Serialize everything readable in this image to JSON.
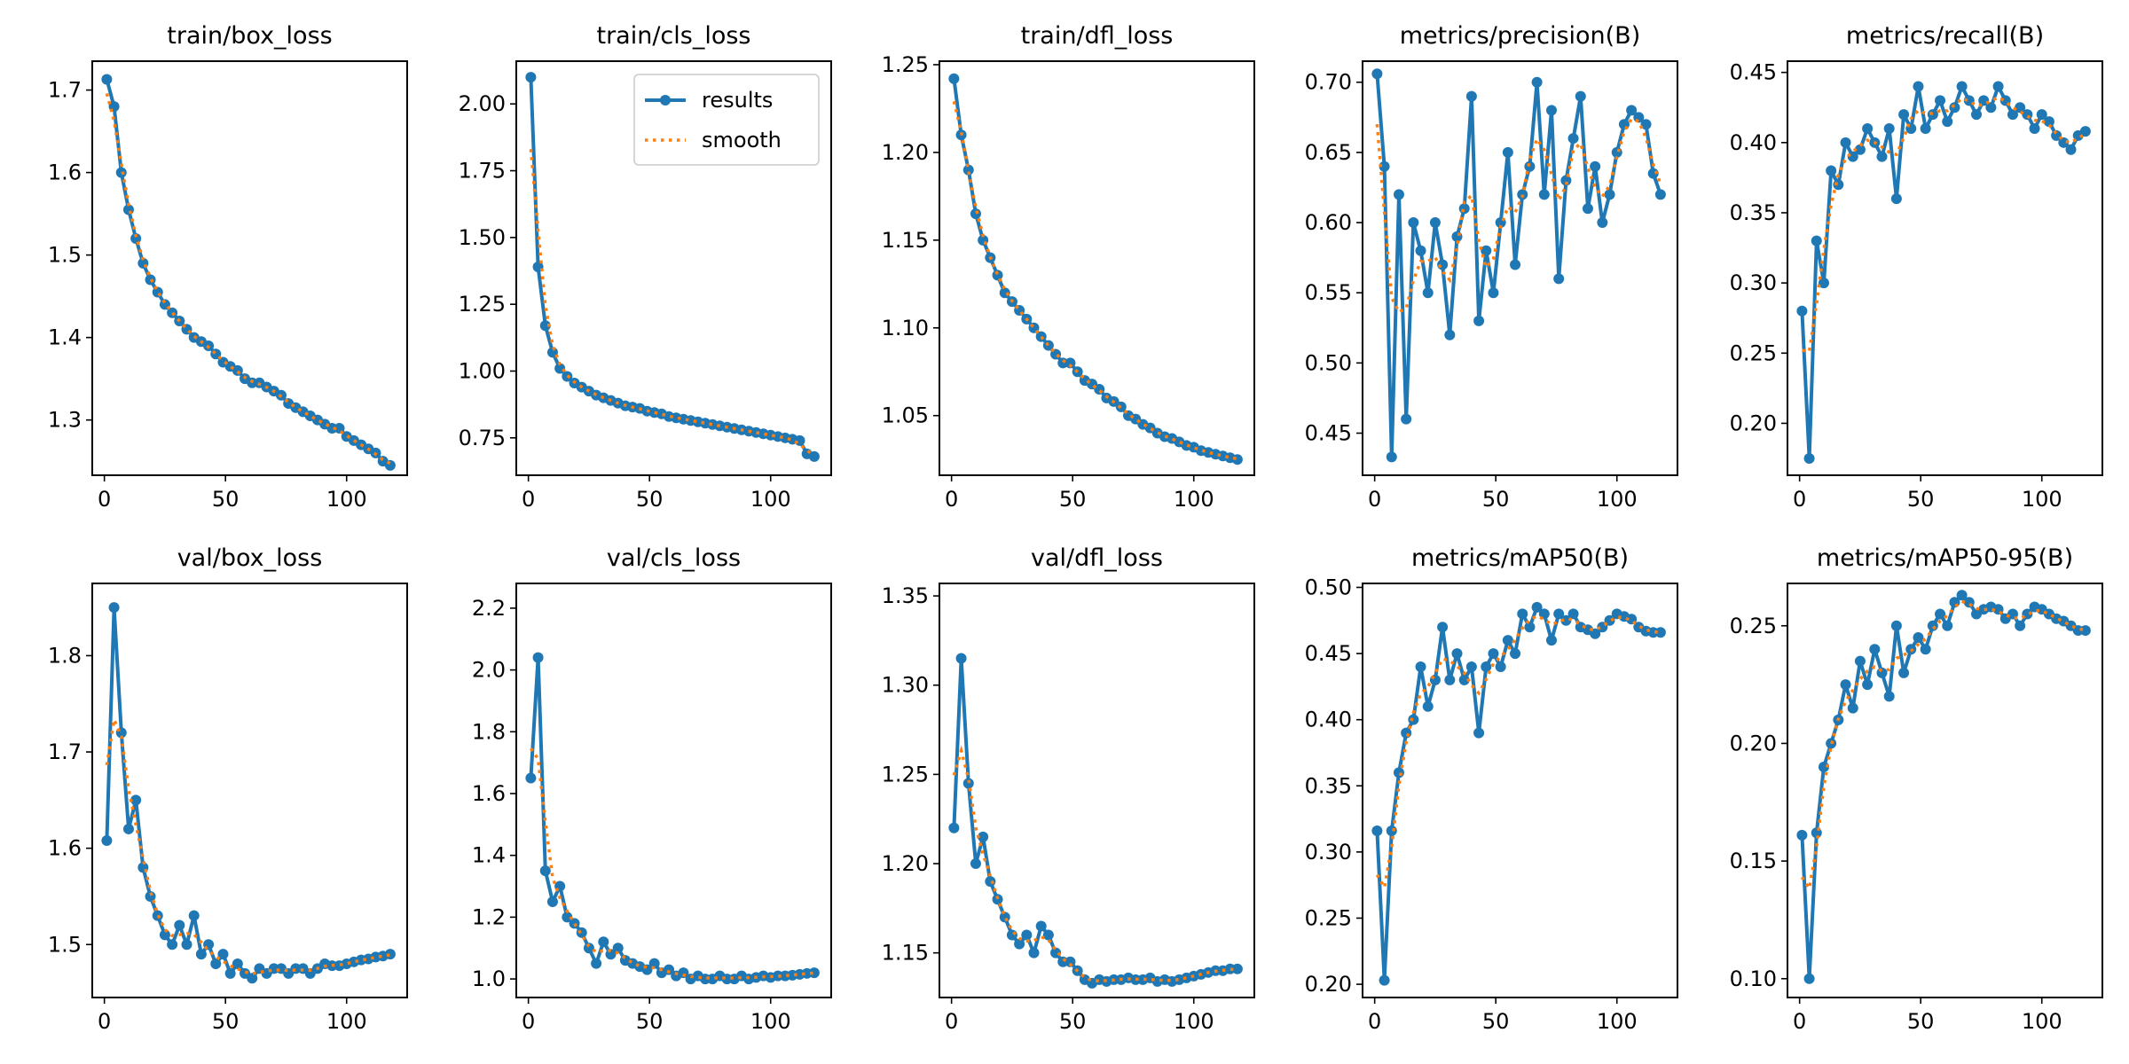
{
  "chart_data": [
    {
      "type": "line",
      "title": "train/box_loss",
      "x_start": 1,
      "x_step": 3,
      "xlim": [
        -5,
        125
      ],
      "xticks": [
        0,
        50,
        100
      ],
      "ylim": [
        1.233,
        1.735
      ],
      "yticks": [
        "1.3",
        "1.4",
        "1.5",
        "1.6",
        "1.7"
      ],
      "values": [
        1.713,
        1.68,
        1.6,
        1.555,
        1.52,
        1.49,
        1.47,
        1.455,
        1.44,
        1.43,
        1.42,
        1.41,
        1.4,
        1.395,
        1.39,
        1.38,
        1.37,
        1.365,
        1.36,
        1.35,
        1.345,
        1.345,
        1.34,
        1.335,
        1.33,
        1.32,
        1.315,
        1.31,
        1.305,
        1.3,
        1.295,
        1.29,
        1.29,
        1.28,
        1.275,
        1.27,
        1.265,
        1.26,
        1.25,
        1.245
      ]
    },
    {
      "type": "line",
      "title": "train/cls_loss",
      "x_start": 1,
      "x_step": 3,
      "xlim": [
        -5,
        125
      ],
      "xticks": [
        0,
        50,
        100
      ],
      "ylim": [
        0.61,
        2.16
      ],
      "yticks": [
        "0.75",
        "1.00",
        "1.25",
        "1.50",
        "1.75",
        "2.00"
      ],
      "values": [
        2.1,
        1.39,
        1.17,
        1.07,
        1.01,
        0.98,
        0.955,
        0.94,
        0.925,
        0.91,
        0.9,
        0.89,
        0.88,
        0.87,
        0.865,
        0.86,
        0.85,
        0.845,
        0.84,
        0.83,
        0.825,
        0.82,
        0.815,
        0.81,
        0.805,
        0.8,
        0.795,
        0.79,
        0.785,
        0.78,
        0.775,
        0.77,
        0.765,
        0.76,
        0.755,
        0.75,
        0.745,
        0.74,
        0.69,
        0.68
      ]
    },
    {
      "type": "line",
      "title": "train/dfl_loss",
      "x_start": 1,
      "x_step": 3,
      "xlim": [
        -5,
        125
      ],
      "xticks": [
        0,
        50,
        100
      ],
      "ylim": [
        1.016,
        1.252
      ],
      "yticks": [
        "1.05",
        "1.10",
        "1.15",
        "1.20",
        "1.25"
      ],
      "values": [
        1.242,
        1.21,
        1.19,
        1.165,
        1.15,
        1.14,
        1.13,
        1.12,
        1.115,
        1.11,
        1.105,
        1.1,
        1.095,
        1.09,
        1.085,
        1.08,
        1.08,
        1.075,
        1.07,
        1.068,
        1.065,
        1.06,
        1.058,
        1.055,
        1.05,
        1.048,
        1.045,
        1.043,
        1.04,
        1.038,
        1.037,
        1.035,
        1.033,
        1.032,
        1.03,
        1.029,
        1.028,
        1.027,
        1.026,
        1.025
      ]
    },
    {
      "type": "line",
      "title": "metrics/precision(B)",
      "x_start": 1,
      "x_step": 3,
      "xlim": [
        -5,
        125
      ],
      "xticks": [
        0,
        50,
        100
      ],
      "ylim": [
        0.42,
        0.715
      ],
      "yticks": [
        "0.45",
        "0.50",
        "0.55",
        "0.60",
        "0.65",
        "0.70"
      ],
      "values": [
        0.706,
        0.64,
        0.433,
        0.62,
        0.46,
        0.6,
        0.58,
        0.55,
        0.6,
        0.57,
        0.52,
        0.59,
        0.61,
        0.69,
        0.53,
        0.58,
        0.55,
        0.6,
        0.65,
        0.57,
        0.62,
        0.64,
        0.7,
        0.62,
        0.68,
        0.56,
        0.63,
        0.66,
        0.69,
        0.61,
        0.64,
        0.6,
        0.62,
        0.65,
        0.67,
        0.68,
        0.675,
        0.67,
        0.635,
        0.62
      ]
    },
    {
      "type": "line",
      "title": "metrics/recall(B)",
      "x_start": 1,
      "x_step": 3,
      "xlim": [
        -5,
        125
      ],
      "xticks": [
        0,
        50,
        100
      ],
      "ylim": [
        0.163,
        0.458
      ],
      "yticks": [
        "0.20",
        "0.25",
        "0.30",
        "0.35",
        "0.40",
        "0.45"
      ],
      "values": [
        0.28,
        0.175,
        0.33,
        0.3,
        0.38,
        0.37,
        0.4,
        0.39,
        0.395,
        0.41,
        0.4,
        0.39,
        0.41,
        0.36,
        0.42,
        0.41,
        0.44,
        0.41,
        0.42,
        0.43,
        0.415,
        0.425,
        0.44,
        0.43,
        0.42,
        0.43,
        0.425,
        0.44,
        0.43,
        0.42,
        0.425,
        0.42,
        0.41,
        0.42,
        0.415,
        0.405,
        0.4,
        0.395,
        0.405,
        0.408
      ]
    },
    {
      "type": "line",
      "title": "val/box_loss",
      "x_start": 1,
      "x_step": 3,
      "xlim": [
        -5,
        125
      ],
      "xticks": [
        0,
        50,
        100
      ],
      "ylim": [
        1.445,
        1.875
      ],
      "yticks": [
        "1.5",
        "1.6",
        "1.7",
        "1.8"
      ],
      "values": [
        1.608,
        1.85,
        1.72,
        1.62,
        1.65,
        1.58,
        1.55,
        1.53,
        1.51,
        1.5,
        1.52,
        1.5,
        1.53,
        1.49,
        1.5,
        1.48,
        1.49,
        1.47,
        1.48,
        1.47,
        1.465,
        1.475,
        1.47,
        1.475,
        1.475,
        1.47,
        1.475,
        1.475,
        1.47,
        1.475,
        1.48,
        1.478,
        1.478,
        1.48,
        1.482,
        1.484,
        1.485,
        1.487,
        1.488,
        1.49
      ]
    },
    {
      "type": "line",
      "title": "val/cls_loss",
      "x_start": 1,
      "x_step": 3,
      "xlim": [
        -5,
        125
      ],
      "xticks": [
        0,
        50,
        100
      ],
      "ylim": [
        0.94,
        2.28
      ],
      "yticks": [
        "1.0",
        "1.2",
        "1.4",
        "1.6",
        "1.8",
        "2.0",
        "2.2"
      ],
      "values": [
        1.65,
        2.04,
        1.35,
        1.25,
        1.3,
        1.2,
        1.18,
        1.15,
        1.1,
        1.05,
        1.12,
        1.08,
        1.1,
        1.06,
        1.05,
        1.04,
        1.03,
        1.05,
        1.02,
        1.03,
        1.01,
        1.02,
        1.0,
        1.01,
        1.0,
        1.0,
        1.01,
        1.0,
        1.0,
        1.01,
        1.0,
        1.005,
        1.01,
        1.005,
        1.01,
        1.01,
        1.012,
        1.015,
        1.018,
        1.02
      ]
    },
    {
      "type": "line",
      "title": "val/dfl_loss",
      "x_start": 1,
      "x_step": 3,
      "xlim": [
        -5,
        125
      ],
      "xticks": [
        0,
        50,
        100
      ],
      "ylim": [
        1.125,
        1.357
      ],
      "yticks": [
        "1.15",
        "1.20",
        "1.25",
        "1.30",
        "1.35"
      ],
      "values": [
        1.22,
        1.315,
        1.245,
        1.2,
        1.215,
        1.19,
        1.18,
        1.17,
        1.16,
        1.155,
        1.16,
        1.15,
        1.165,
        1.16,
        1.15,
        1.145,
        1.145,
        1.14,
        1.135,
        1.133,
        1.135,
        1.134,
        1.135,
        1.135,
        1.136,
        1.135,
        1.135,
        1.136,
        1.134,
        1.135,
        1.134,
        1.135,
        1.136,
        1.137,
        1.138,
        1.139,
        1.14,
        1.14,
        1.141,
        1.141
      ]
    },
    {
      "type": "line",
      "title": "metrics/mAP50(B)",
      "x_start": 1,
      "x_step": 3,
      "xlim": [
        -5,
        125
      ],
      "xticks": [
        0,
        50,
        100
      ],
      "ylim": [
        0.19,
        0.503
      ],
      "yticks": [
        "0.20",
        "0.25",
        "0.30",
        "0.35",
        "0.40",
        "0.45",
        "0.50"
      ],
      "values": [
        0.316,
        0.203,
        0.316,
        0.36,
        0.39,
        0.4,
        0.44,
        0.41,
        0.43,
        0.47,
        0.43,
        0.45,
        0.43,
        0.44,
        0.39,
        0.44,
        0.45,
        0.44,
        0.46,
        0.45,
        0.48,
        0.47,
        0.485,
        0.48,
        0.46,
        0.48,
        0.475,
        0.48,
        0.47,
        0.468,
        0.465,
        0.47,
        0.475,
        0.48,
        0.478,
        0.476,
        0.47,
        0.467,
        0.466,
        0.466
      ]
    },
    {
      "type": "line",
      "title": "metrics/mAP50-95(B)",
      "x_start": 1,
      "x_step": 3,
      "xlim": [
        -5,
        125
      ],
      "xticks": [
        0,
        50,
        100
      ],
      "ylim": [
        0.092,
        0.268
      ],
      "yticks": [
        "0.10",
        "0.15",
        "0.20",
        "0.25"
      ],
      "values": [
        0.161,
        0.1,
        0.162,
        0.19,
        0.2,
        0.21,
        0.225,
        0.215,
        0.235,
        0.225,
        0.24,
        0.23,
        0.22,
        0.25,
        0.23,
        0.24,
        0.245,
        0.24,
        0.25,
        0.255,
        0.25,
        0.26,
        0.263,
        0.26,
        0.255,
        0.257,
        0.258,
        0.257,
        0.253,
        0.255,
        0.25,
        0.255,
        0.258,
        0.257,
        0.255,
        0.253,
        0.252,
        0.25,
        0.248,
        0.248
      ]
    }
  ],
  "legend": {
    "placement": "top-right",
    "subplot": 1,
    "items": [
      {
        "label": "results",
        "color": "#1f77b4"
      },
      {
        "label": "smooth",
        "color": "#ff7f0e"
      }
    ]
  },
  "colors": {
    "results": "#1f77b4",
    "smooth": "#ff7f0e"
  }
}
